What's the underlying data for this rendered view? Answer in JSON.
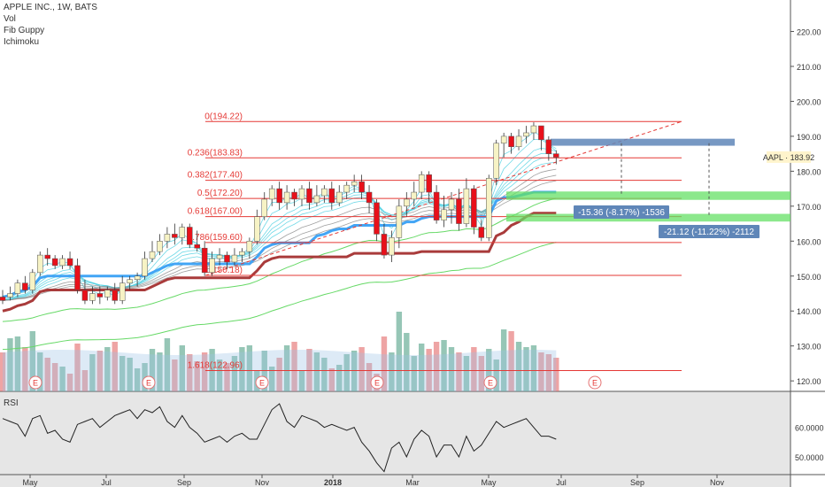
{
  "legend": {
    "title": "APPLE INC., 1W, BATS",
    "studies": [
      "Vol",
      "Fib Guppy",
      "Ichimoku"
    ]
  },
  "rsi_label": "RSI",
  "colors": {
    "up": "#f7f3c5",
    "down": "#e8101a",
    "fib": "#e53935",
    "kijun": "#42a5f5",
    "senkou": "#a93b3b",
    "measure": "#5f86b8",
    "zone_green": "#66e066",
    "zone_blue": "#5f86b8",
    "vol_up": "#5ea88f",
    "vol_down": "#e57373"
  },
  "chart_data": {
    "type": "candlestick",
    "symbol": "AAPL",
    "timeframe": "1W",
    "exchange": "BATS",
    "x_labels": [
      "May",
      "Jul",
      "Sep",
      "Nov",
      "2018",
      "Mar",
      "May",
      "Jul",
      "Sep",
      "Nov"
    ],
    "price_axis": {
      "min": 117,
      "max": 229,
      "ticks": [
        120,
        130,
        140,
        150,
        160,
        170,
        180,
        190,
        200,
        210,
        220
      ],
      "labels": [
        "120.00",
        "130.00",
        "140.00",
        "150.00",
        "160.00",
        "170.00",
        "180.00",
        "190.00",
        "200.00",
        "210.00",
        "220.00"
      ]
    },
    "last_price": {
      "label": "AAPL",
      "value": "183.92"
    },
    "candles": [
      [
        144,
        143,
        146,
        142
      ],
      [
        144,
        145,
        147,
        143
      ],
      [
        145,
        148,
        149,
        144
      ],
      [
        148,
        146,
        150,
        145
      ],
      [
        146,
        151,
        152,
        145
      ],
      [
        151,
        156,
        157,
        150
      ],
      [
        156,
        155,
        158,
        153
      ],
      [
        155,
        153,
        156,
        152
      ],
      [
        153,
        155,
        156,
        152
      ],
      [
        155,
        153,
        157,
        152
      ],
      [
        153,
        146,
        155,
        145
      ],
      [
        146,
        143,
        149,
        142
      ],
      [
        143,
        145,
        147,
        142
      ],
      [
        145,
        144,
        147,
        142
      ],
      [
        144,
        146,
        147,
        143
      ],
      [
        146,
        143,
        148,
        142
      ],
      [
        143,
        148,
        150,
        142
      ],
      [
        148,
        149,
        150,
        146
      ],
      [
        149,
        150,
        151,
        147
      ],
      [
        150,
        155,
        157,
        149
      ],
      [
        155,
        157,
        160,
        154
      ],
      [
        157,
        160,
        162,
        156
      ],
      [
        160,
        162,
        164,
        158
      ],
      [
        162,
        161,
        165,
        159
      ],
      [
        161,
        164,
        165,
        159
      ],
      [
        164,
        159,
        165,
        158
      ],
      [
        159,
        158,
        163,
        157
      ],
      [
        158,
        151,
        160,
        150
      ],
      [
        151,
        155,
        157,
        150
      ],
      [
        155,
        156,
        158,
        153
      ],
      [
        156,
        154,
        157,
        152
      ],
      [
        154,
        156,
        158,
        153
      ],
      [
        156,
        157,
        158,
        154
      ],
      [
        157,
        160,
        161,
        155
      ],
      [
        160,
        167,
        169,
        159
      ],
      [
        167,
        172,
        174,
        166
      ],
      [
        172,
        175,
        176,
        170
      ],
      [
        175,
        171,
        177,
        169
      ],
      [
        171,
        174,
        176,
        169
      ],
      [
        174,
        172,
        175,
        170
      ],
      [
        172,
        175,
        176,
        170
      ],
      [
        175,
        171,
        177,
        169
      ],
      [
        171,
        173,
        176,
        170
      ],
      [
        173,
        175,
        176,
        171
      ],
      [
        175,
        171,
        177,
        169
      ],
      [
        171,
        174,
        176,
        170
      ],
      [
        174,
        176,
        177,
        172
      ],
      [
        176,
        177,
        179,
        174
      ],
      [
        177,
        174,
        179,
        172
      ],
      [
        174,
        171,
        176,
        168
      ],
      [
        171,
        162,
        172,
        160
      ],
      [
        162,
        156,
        165,
        155
      ],
      [
        156,
        161,
        163,
        154
      ],
      [
        161,
        170,
        172,
        158
      ],
      [
        170,
        172,
        174,
        167
      ],
      [
        172,
        174,
        177,
        170
      ],
      [
        174,
        179,
        180,
        172
      ],
      [
        179,
        174,
        180,
        171
      ],
      [
        174,
        166,
        176,
        165
      ],
      [
        166,
        169,
        173,
        164
      ],
      [
        169,
        172,
        174,
        165
      ],
      [
        172,
        165,
        175,
        163
      ],
      [
        165,
        175,
        178,
        164
      ],
      [
        175,
        164,
        176,
        162
      ],
      [
        164,
        161,
        166,
        160
      ],
      [
        161,
        178,
        179,
        160
      ],
      [
        178,
        188,
        189,
        176
      ],
      [
        188,
        190,
        191,
        184
      ],
      [
        190,
        187,
        191,
        185
      ],
      [
        187,
        190,
        192,
        186
      ],
      [
        190,
        191,
        193,
        188
      ],
      [
        191,
        193,
        194,
        189
      ],
      [
        193,
        189,
        193,
        186
      ],
      [
        189,
        185,
        190,
        183
      ],
      [
        185,
        184,
        186,
        182
      ]
    ],
    "fib_levels": [
      {
        "label": "0(194.22)",
        "value": 194.22
      },
      {
        "label": "0.236(183.83)",
        "value": 183.83
      },
      {
        "label": "0.382(177.40)",
        "value": 177.4
      },
      {
        "label": "0.5(172.20)",
        "value": 172.2
      },
      {
        "label": "0.618(167.00)",
        "value": 167.0
      },
      {
        "label": "0.786(159.60)",
        "value": 159.6
      },
      {
        "label": "1(150.18)",
        "value": 150.18
      },
      {
        "label": "1.618(122.96)",
        "value": 122.96
      }
    ],
    "measurements": [
      "-15.36 (-8.17%) -1536",
      "-21.12 (-11.22%) -2112"
    ],
    "volume": [
      22,
      30,
      31,
      25,
      34,
      22,
      19,
      16,
      14,
      10,
      27,
      12,
      21,
      23,
      25,
      28,
      20,
      19,
      13,
      16,
      24,
      22,
      30,
      18,
      26,
      21,
      17,
      22,
      24,
      18,
      16,
      20,
      25,
      26,
      12,
      23,
      14,
      19,
      26,
      28,
      12,
      24,
      22,
      19,
      13,
      15,
      21,
      23,
      25,
      16,
      10,
      31,
      22,
      45,
      33,
      20,
      27,
      24,
      28,
      29,
      25,
      22,
      20,
      25,
      20,
      24,
      18,
      35,
      34,
      28,
      25,
      26,
      22,
      21,
      19
    ],
    "earnings_markers": [
      "E",
      "E",
      "E",
      "E",
      "E",
      "E"
    ],
    "rsi": {
      "axis_labels": [
        "60.0000",
        "50.0000"
      ],
      "ticks": [
        60,
        50
      ],
      "min": 44,
      "max": 71,
      "values": [
        63,
        62,
        61,
        57,
        63,
        64,
        58,
        59,
        56,
        55,
        61,
        62,
        63,
        60,
        62,
        64,
        65,
        66,
        63,
        66,
        65,
        67,
        62,
        60,
        64,
        60,
        58,
        55,
        56,
        57,
        55,
        57,
        58,
        56,
        56,
        61,
        66,
        68,
        62,
        60,
        64,
        63,
        62,
        60,
        61,
        60,
        59,
        60,
        55,
        52,
        48,
        45,
        53,
        55,
        50,
        56,
        59,
        57,
        50,
        54,
        54,
        50,
        57,
        52,
        54,
        58,
        62,
        60,
        61,
        62,
        63,
        60,
        57,
        57,
        56
      ]
    }
  }
}
